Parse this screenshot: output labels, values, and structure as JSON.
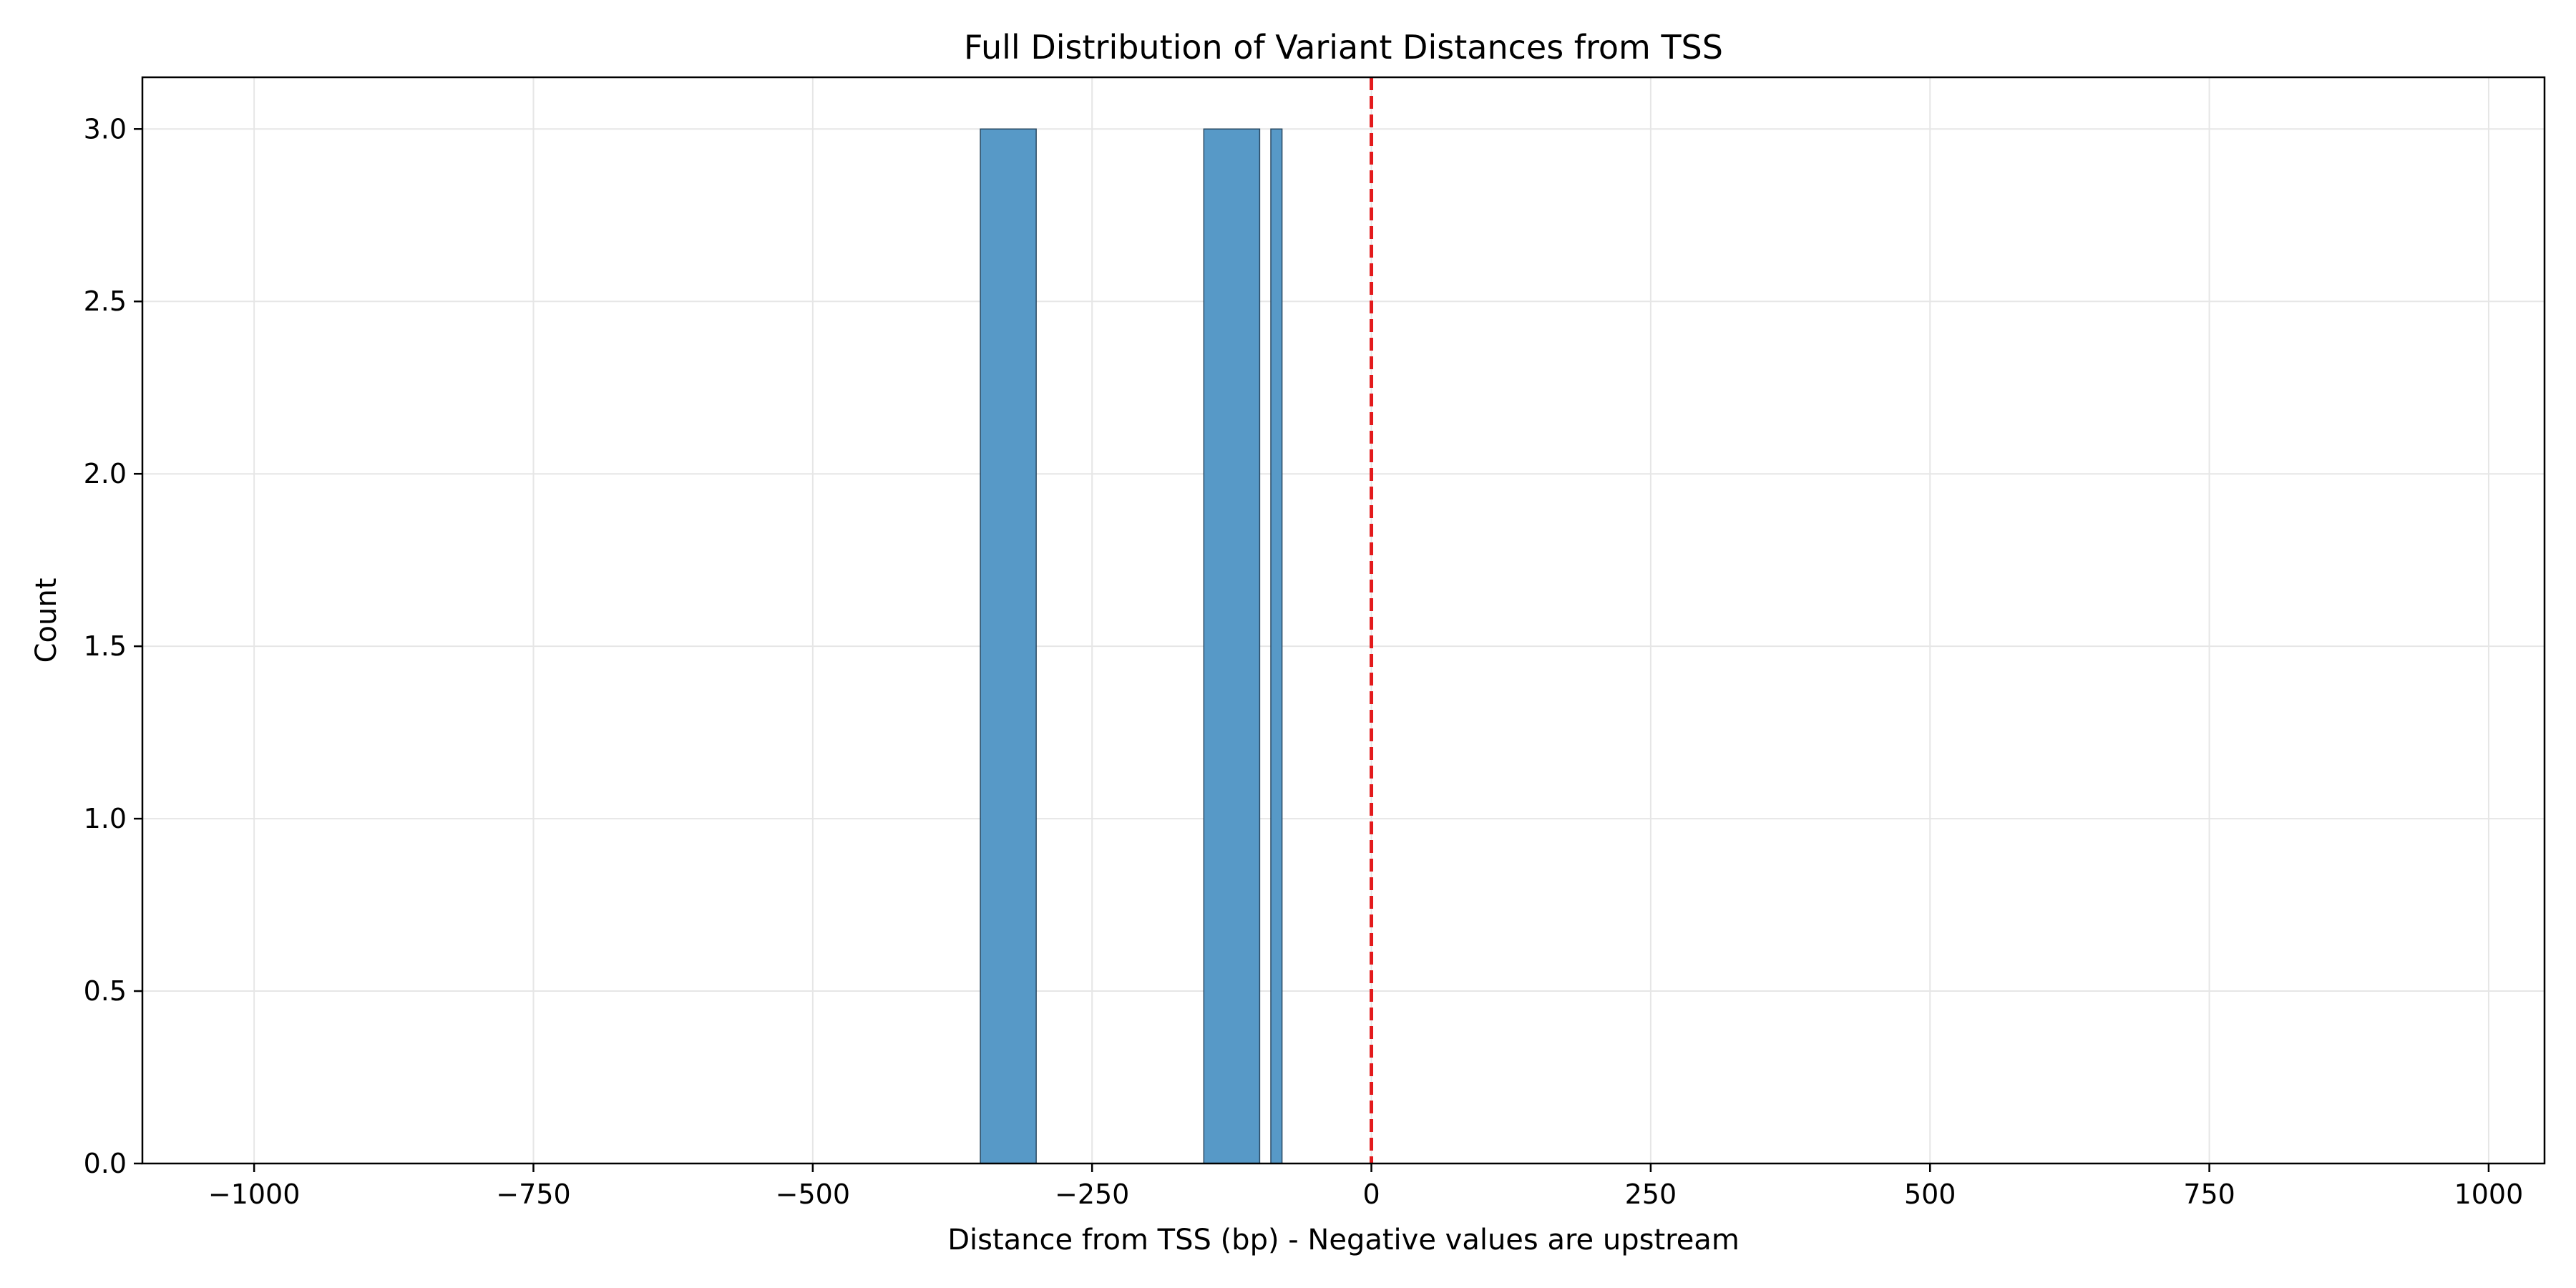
{
  "chart_data": {
    "type": "bar",
    "title": "Full Distribution of Variant Distances from TSS",
    "xlabel": "Distance from TSS (bp) - Negative values are upstream",
    "ylabel": "Count",
    "xlim": [
      -1100,
      1050
    ],
    "ylim": [
      0,
      3.15
    ],
    "x_ticks": [
      -1000,
      -750,
      -500,
      -250,
      0,
      250,
      500,
      750,
      1000
    ],
    "x_tick_labels": [
      "−1000",
      "−750",
      "−500",
      "−250",
      "0",
      "250",
      "500",
      "750",
      "1000"
    ],
    "y_ticks": [
      0,
      0.5,
      1.0,
      1.5,
      2.0,
      2.5,
      3.0
    ],
    "y_tick_labels": [
      "0.0",
      "0.5",
      "1.0",
      "1.5",
      "2.0",
      "2.5",
      "3.0"
    ],
    "grid": true,
    "bars": [
      {
        "x_start": -350,
        "x_end": -300,
        "count": 3
      },
      {
        "x_start": -150,
        "x_end": -100,
        "count": 3
      },
      {
        "x_start": -90,
        "x_end": -80,
        "count": 3
      }
    ],
    "reference_line": {
      "x": 0,
      "style": "dashed"
    },
    "colors": {
      "bar_fill": "#5799c7",
      "bar_edge": "#2b4a63",
      "reference_line": "#e31a1c",
      "grid": "#e6e6e6",
      "axis": "#000000"
    }
  }
}
